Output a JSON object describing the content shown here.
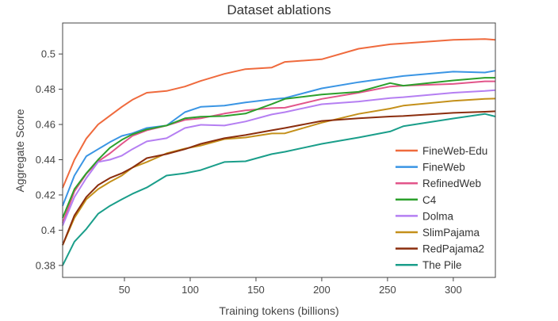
{
  "chart_data": {
    "type": "line",
    "title": "Dataset ablations",
    "xlabel": "Training tokens (billions)",
    "ylabel": "Aggregate Score",
    "xlim": [
      3,
      332
    ],
    "ylim": [
      0.3732,
      0.5176
    ],
    "xticks": [
      50,
      100,
      150,
      200,
      250,
      300
    ],
    "yticks": [
      0.38,
      0.4,
      0.42,
      0.44,
      0.46,
      0.48,
      0.5
    ],
    "ytick_labels": [
      "0.38",
      "0.4",
      "0.42",
      "0.44",
      "0.46",
      "0.48",
      "0.5"
    ],
    "grid": false,
    "legend_position": "bottom-right",
    "x": [
      3,
      12,
      21,
      30,
      39,
      48,
      56,
      67,
      82,
      96,
      108,
      126,
      142,
      162,
      172,
      200,
      228,
      252,
      262,
      300,
      324,
      332
    ],
    "series": [
      {
        "name": "FineWeb-Edu",
        "color": "#EF6A3D",
        "values": [
          0.424,
          0.44,
          0.452,
          0.46,
          0.465,
          0.47,
          0.474,
          0.478,
          0.479,
          0.4815,
          0.4847,
          0.4887,
          0.4914,
          0.4923,
          0.4955,
          0.497,
          0.503,
          0.5055,
          0.506,
          0.508,
          0.5085,
          0.508
        ]
      },
      {
        "name": "FineWeb",
        "color": "#3A95E4",
        "values": [
          0.4138,
          0.431,
          0.442,
          0.446,
          0.45,
          0.4535,
          0.455,
          0.458,
          0.4594,
          0.467,
          0.47,
          0.4707,
          0.4725,
          0.4743,
          0.475,
          0.4805,
          0.484,
          0.4865,
          0.4875,
          0.49,
          0.4895,
          0.4905
        ]
      },
      {
        "name": "RefinedWeb",
        "color": "#E2558A",
        "values": [
          0.404,
          0.422,
          0.432,
          0.439,
          0.4436,
          0.449,
          0.4535,
          0.4567,
          0.4594,
          0.4626,
          0.4635,
          0.4662,
          0.468,
          0.4693,
          0.4695,
          0.4745,
          0.478,
          0.4815,
          0.482,
          0.483,
          0.4845,
          0.4845
        ]
      },
      {
        "name": "C4",
        "color": "#2CA02C",
        "values": [
          0.407,
          0.4233,
          0.4323,
          0.44,
          0.4468,
          0.4513,
          0.4544,
          0.4572,
          0.4594,
          0.4635,
          0.4644,
          0.4648,
          0.4662,
          0.4716,
          0.4745,
          0.477,
          0.4785,
          0.4835,
          0.482,
          0.485,
          0.4865,
          0.4865
        ]
      },
      {
        "name": "Dolma",
        "color": "#B57FF2",
        "values": [
          0.4026,
          0.4188,
          0.4296,
          0.4387,
          0.44,
          0.4423,
          0.446,
          0.4504,
          0.4522,
          0.458,
          0.4598,
          0.4594,
          0.4617,
          0.4657,
          0.467,
          0.4715,
          0.473,
          0.475,
          0.4755,
          0.478,
          0.479,
          0.4795
        ]
      },
      {
        "name": "SlimPajama",
        "color": "#C4901A",
        "values": [
          0.3915,
          0.407,
          0.4175,
          0.4233,
          0.4274,
          0.431,
          0.4355,
          0.4387,
          0.4436,
          0.4463,
          0.448,
          0.4517,
          0.4526,
          0.4549,
          0.455,
          0.461,
          0.466,
          0.469,
          0.4707,
          0.4734,
          0.4745,
          0.4747
        ]
      },
      {
        "name": "RedPajama2",
        "color": "#8B2E0E",
        "values": [
          0.3915,
          0.4084,
          0.4188,
          0.4256,
          0.4296,
          0.4323,
          0.4355,
          0.4409,
          0.4432,
          0.446,
          0.449,
          0.4522,
          0.454,
          0.4567,
          0.458,
          0.462,
          0.4635,
          0.4645,
          0.4648,
          0.4666,
          0.4672,
          0.4675
        ]
      },
      {
        "name": "The Pile",
        "color": "#1A9E8A",
        "values": [
          0.38,
          0.3935,
          0.4007,
          0.4093,
          0.4138,
          0.4175,
          0.4206,
          0.4242,
          0.431,
          0.4323,
          0.4341,
          0.4387,
          0.4391,
          0.4432,
          0.4445,
          0.449,
          0.4526,
          0.456,
          0.459,
          0.4634,
          0.466,
          0.4645
        ]
      }
    ]
  }
}
